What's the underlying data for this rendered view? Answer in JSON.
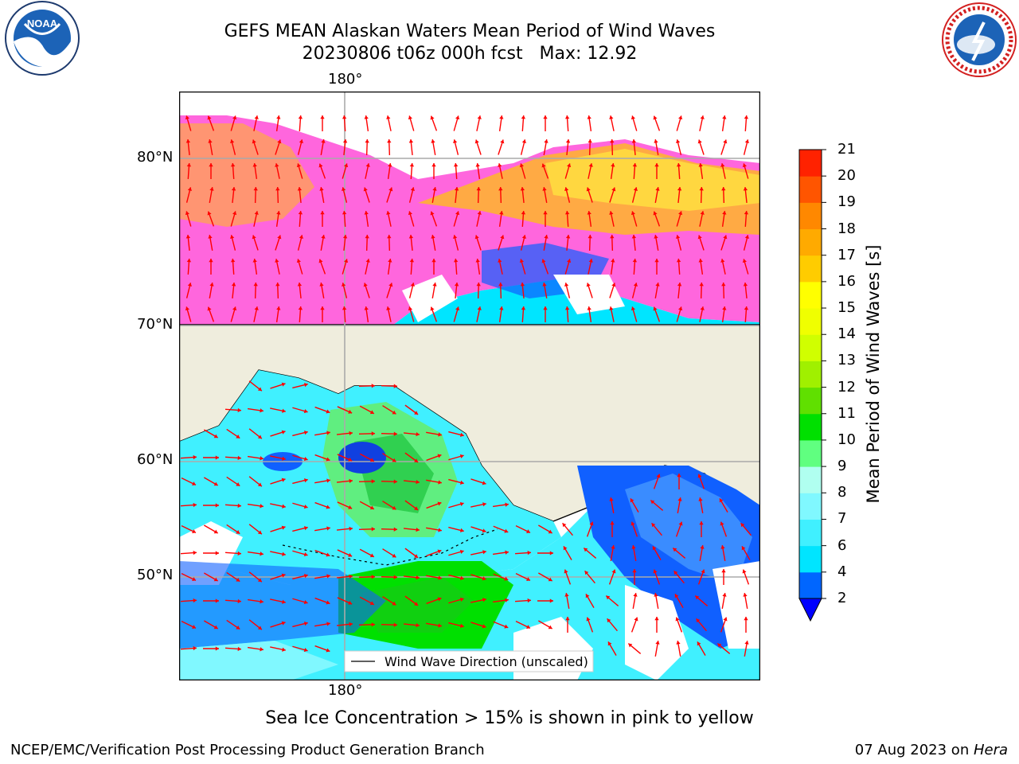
{
  "header": {
    "title_line1": "GEFS MEAN Alaskan Waters Mean Period of Wind Waves",
    "title_line2": "20230806 t06z 000h fcst   Max: 12.92"
  },
  "logos": {
    "left": "NOAA",
    "left_ring_text": "NATIONAL OCEANIC AND ATMOSPHERIC ADMINISTRATION · U.S. DEPARTMENT OF COMMERCE",
    "right_ring_text": "NATIONAL WEATHER SERVICE"
  },
  "map": {
    "lon_label_top": "180°",
    "lon_label_bottom": "180°",
    "lat_labels": [
      "80°N",
      "70°N",
      "60°N",
      "50°N"
    ],
    "legend_label": "Wind Wave Direction (unscaled)",
    "colors": {
      "land": "#efeddd",
      "ice_pink": "#ff66dd",
      "ice_orange": "#ffaa44",
      "ice_yellow": "#ffd740",
      "arrow": "#ff0000"
    }
  },
  "colorbar": {
    "label": "Mean Period of Wind Waves [s]",
    "ticks": [
      "2",
      "4",
      "6",
      "7",
      "8",
      "9",
      "10",
      "11",
      "12",
      "13",
      "14",
      "15",
      "16",
      "17",
      "18",
      "19",
      "20",
      "21"
    ],
    "colors": [
      "#0066ff",
      "#00e5ff",
      "#40f0ff",
      "#80f8ff",
      "#b0fff0",
      "#60ff80",
      "#00e000",
      "#60e000",
      "#a0f000",
      "#d0ff00",
      "#f0ff00",
      "#ffff00",
      "#ffcc00",
      "#ffaa00",
      "#ff8800",
      "#ff5500",
      "#ff2200"
    ]
  },
  "footer": {
    "note": "Sea Ice Concentration > 15% is shown in pink to yellow",
    "left": "NCEP/EMC/Verification Post Processing Product Generation Branch",
    "right_date": "07 Aug 2023 on ",
    "right_machine": "Hera"
  }
}
